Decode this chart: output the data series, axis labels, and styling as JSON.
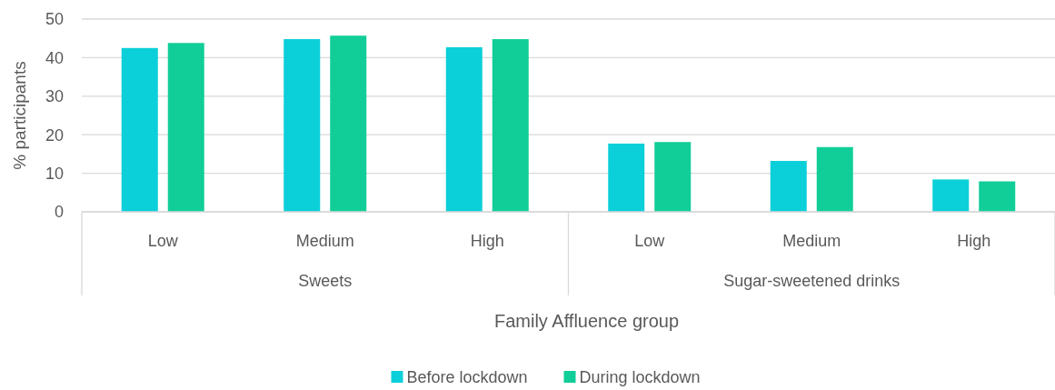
{
  "chart_data": {
    "type": "bar",
    "xlabel": "Family Affluence group",
    "ylabel": "% participants",
    "categories": [
      "Low",
      "Medium",
      "High",
      "Low",
      "Medium",
      "High"
    ],
    "series": [
      {
        "name": "Before lockdown",
        "color": "#0bcfd9",
        "values": [
          42.5,
          44.8,
          42.7,
          17.7,
          13.2,
          8.4
        ]
      },
      {
        "name": "During lockdown",
        "color": "#11ce98",
        "values": [
          43.8,
          45.7,
          44.8,
          18.1,
          16.8,
          7.9
        ]
      }
    ],
    "annotations": [
      "Sweets",
      "Sugar-sweetened drinks"
    ],
    "ylim": [
      0,
      50
    ],
    "yticks": [
      0,
      10,
      20,
      30,
      40,
      50
    ],
    "grid": "y",
    "legend": "bottom"
  }
}
